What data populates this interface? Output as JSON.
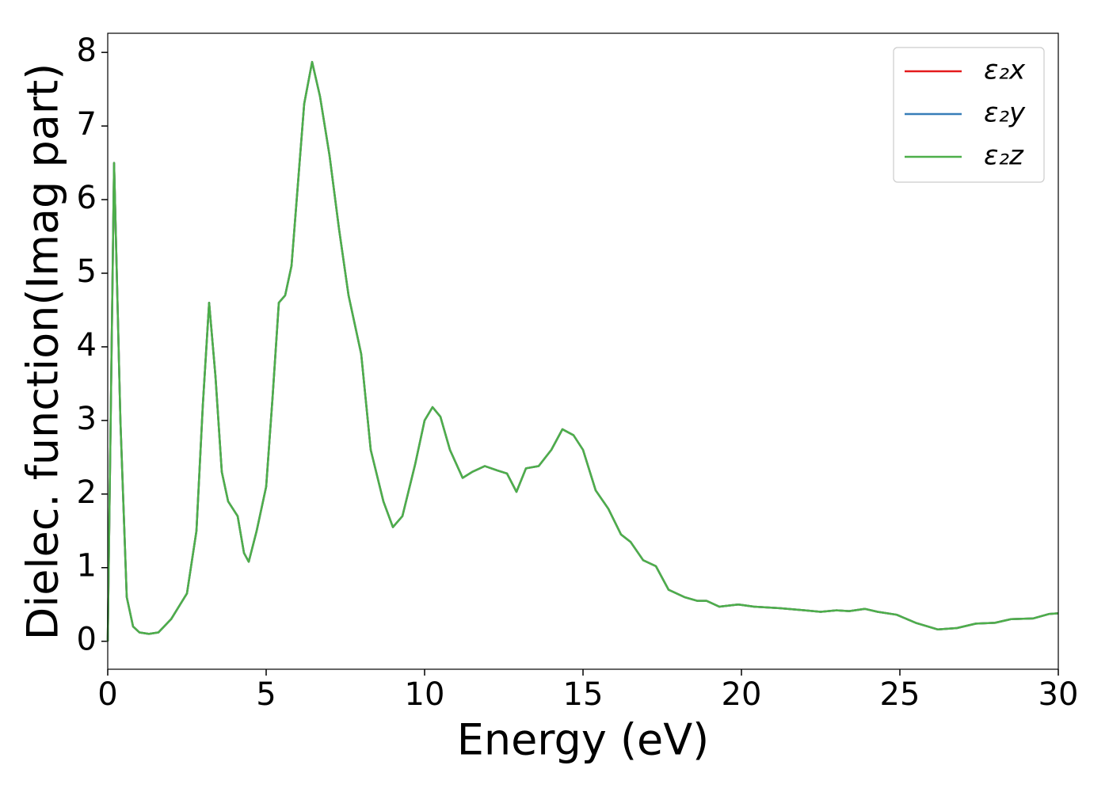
{
  "chart_data": {
    "type": "line",
    "xlabel": "Energy (eV)",
    "ylabel": "Dielec. function(Imag part)",
    "xlim": [
      0,
      30
    ],
    "ylim": [
      -0.38,
      8.26
    ],
    "xticks": [
      0,
      5,
      10,
      15,
      20,
      25,
      30
    ],
    "yticks": [
      0,
      1,
      2,
      3,
      4,
      5,
      6,
      7,
      8
    ],
    "grid": false,
    "legend": "upper right",
    "x": [
      0,
      0.2,
      0.4,
      0.6,
      0.8,
      1.0,
      1.3,
      1.6,
      2.0,
      2.5,
      2.8,
      3.0,
      3.2,
      3.4,
      3.6,
      3.8,
      4.1,
      4.3,
      4.45,
      4.7,
      5.0,
      5.2,
      5.4,
      5.6,
      5.8,
      6.0,
      6.2,
      6.45,
      6.7,
      7.0,
      7.3,
      7.6,
      8.0,
      8.3,
      8.7,
      9.0,
      9.3,
      9.7,
      10.0,
      10.25,
      10.5,
      10.8,
      11.2,
      11.5,
      11.9,
      12.3,
      12.6,
      12.9,
      13.2,
      13.6,
      14.0,
      14.35,
      14.7,
      15.0,
      15.4,
      15.8,
      16.2,
      16.5,
      16.9,
      17.3,
      17.7,
      18.2,
      18.6,
      18.9,
      19.3,
      19.9,
      20.4,
      21.2,
      22.0,
      22.5,
      23.0,
      23.4,
      23.9,
      24.3,
      24.9,
      25.5,
      26.2,
      26.8,
      27.4,
      28.0,
      28.5,
      29.2,
      29.7,
      30
    ],
    "series": [
      {
        "name": "ε₂x",
        "color": "#e41a1c",
        "values": [
          0,
          6.5,
          3.0,
          0.6,
          0.2,
          0.12,
          0.1,
          0.12,
          0.3,
          0.65,
          1.5,
          3.2,
          4.6,
          3.6,
          2.3,
          1.9,
          1.7,
          1.2,
          1.08,
          1.5,
          2.1,
          3.3,
          4.6,
          4.7,
          5.1,
          6.2,
          7.3,
          7.87,
          7.4,
          6.6,
          5.6,
          4.7,
          3.9,
          2.6,
          1.9,
          1.55,
          1.7,
          2.4,
          3.0,
          3.18,
          3.05,
          2.6,
          2.22,
          2.3,
          2.38,
          2.32,
          2.28,
          2.03,
          2.35,
          2.38,
          2.6,
          2.88,
          2.8,
          2.6,
          2.05,
          1.8,
          1.45,
          1.35,
          1.1,
          1.02,
          0.7,
          0.6,
          0.55,
          0.55,
          0.47,
          0.5,
          0.47,
          0.45,
          0.42,
          0.4,
          0.42,
          0.41,
          0.44,
          0.4,
          0.36,
          0.25,
          0.16,
          0.18,
          0.24,
          0.25,
          0.3,
          0.31,
          0.37,
          0.38
        ]
      },
      {
        "name": "ε₂y",
        "color": "#377eb8",
        "values": [
          0,
          6.5,
          3.0,
          0.6,
          0.2,
          0.12,
          0.1,
          0.12,
          0.3,
          0.65,
          1.5,
          3.2,
          4.6,
          3.6,
          2.3,
          1.9,
          1.7,
          1.2,
          1.08,
          1.5,
          2.1,
          3.3,
          4.6,
          4.7,
          5.1,
          6.2,
          7.3,
          7.87,
          7.4,
          6.6,
          5.6,
          4.7,
          3.9,
          2.6,
          1.9,
          1.55,
          1.7,
          2.4,
          3.0,
          3.18,
          3.05,
          2.6,
          2.22,
          2.3,
          2.38,
          2.32,
          2.28,
          2.03,
          2.35,
          2.38,
          2.6,
          2.88,
          2.8,
          2.6,
          2.05,
          1.8,
          1.45,
          1.35,
          1.1,
          1.02,
          0.7,
          0.6,
          0.55,
          0.55,
          0.47,
          0.5,
          0.47,
          0.45,
          0.42,
          0.4,
          0.42,
          0.41,
          0.44,
          0.4,
          0.36,
          0.25,
          0.16,
          0.18,
          0.24,
          0.25,
          0.3,
          0.31,
          0.37,
          0.38
        ]
      },
      {
        "name": "ε₂z",
        "color": "#4daf4a",
        "values": [
          0,
          6.5,
          3.0,
          0.6,
          0.2,
          0.12,
          0.1,
          0.12,
          0.3,
          0.65,
          1.5,
          3.2,
          4.6,
          3.6,
          2.3,
          1.9,
          1.7,
          1.2,
          1.08,
          1.5,
          2.1,
          3.3,
          4.6,
          4.7,
          5.1,
          6.2,
          7.3,
          7.87,
          7.4,
          6.6,
          5.6,
          4.7,
          3.9,
          2.6,
          1.9,
          1.55,
          1.7,
          2.4,
          3.0,
          3.18,
          3.05,
          2.6,
          2.22,
          2.3,
          2.38,
          2.32,
          2.28,
          2.03,
          2.35,
          2.38,
          2.6,
          2.88,
          2.8,
          2.6,
          2.05,
          1.8,
          1.45,
          1.35,
          1.1,
          1.02,
          0.7,
          0.6,
          0.55,
          0.55,
          0.47,
          0.5,
          0.47,
          0.45,
          0.42,
          0.4,
          0.42,
          0.41,
          0.44,
          0.4,
          0.36,
          0.25,
          0.16,
          0.18,
          0.24,
          0.25,
          0.3,
          0.31,
          0.37,
          0.38
        ]
      }
    ]
  }
}
